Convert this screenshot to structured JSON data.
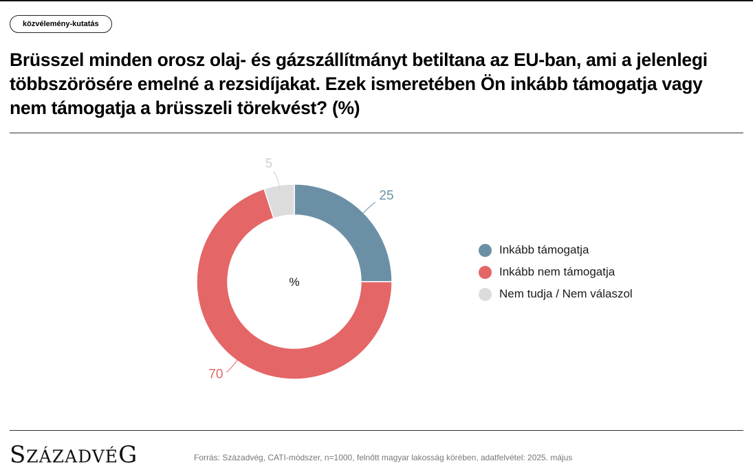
{
  "tag_label": "közvélemény-kutatás",
  "title": "Brüsszel minden orosz olaj- és gázszállítmányt betiltana az EU-ban, ami a jelenlegi többszörösére emelné a rezsidíjakat. Ezek ismeretében Ön inkább támogatja vagy nem támogatja a brüsszeli törekvést? (%)",
  "logo": {
    "text": "SZÁZADVÉG",
    "parts": [
      "S",
      "ZÁZADVÉ",
      "G"
    ]
  },
  "source": "Forrás: Századvég, CATI-módszer, n=1000, felnőtt magyar lakosság körében, adatfelvétel: 2025. május",
  "chart_data": {
    "type": "pie",
    "donut": true,
    "center_label": "%",
    "legend_position": "right",
    "categories": [
      "Inkább támogatja",
      "Inkább nem támogatja",
      "Nem tudja / Nem válaszol"
    ],
    "values": [
      25,
      70,
      5
    ],
    "colors": [
      "#6b90a6",
      "#e46666",
      "#dcdcdc"
    ],
    "label_colors": [
      "#6b90a6",
      "#e46666",
      "#cfcfcf"
    ]
  }
}
